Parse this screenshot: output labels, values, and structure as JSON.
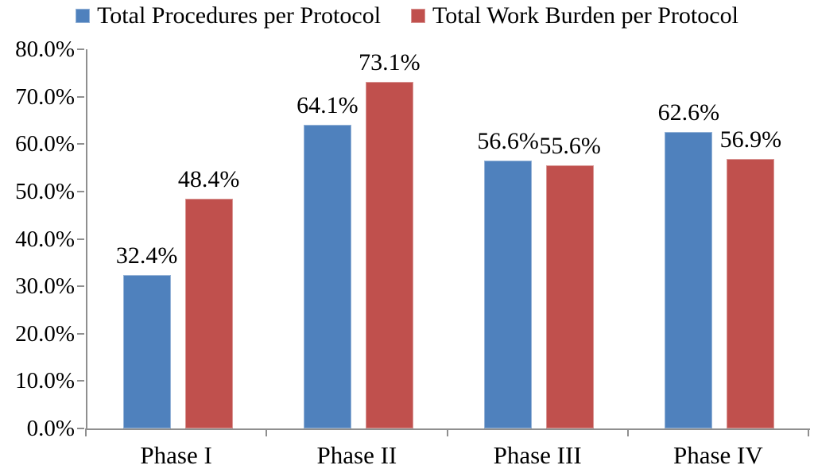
{
  "chart_data": {
    "type": "bar",
    "title": "",
    "xlabel": "",
    "ylabel": "",
    "categories": [
      "Phase I",
      "Phase II",
      "Phase III",
      "Phase IV"
    ],
    "series": [
      {
        "name": "Total Procedures per Protocol",
        "color": "#4F81BD",
        "border_color": "#95B3D7",
        "values": [
          32.4,
          64.1,
          56.6,
          62.6
        ],
        "data_labels": [
          "32.4%",
          "64.1%",
          "56.6%",
          "62.6%"
        ]
      },
      {
        "name": "Total Work Burden per Protocol",
        "color": "#C0504D",
        "border_color": "#D99694",
        "values": [
          48.4,
          73.1,
          55.6,
          56.9
        ],
        "data_labels": [
          "48.4%",
          "73.1%",
          "55.6%",
          "56.9%"
        ]
      }
    ],
    "ylim": [
      0,
      80
    ],
    "ytick_values": [
      0,
      10,
      20,
      30,
      40,
      50,
      60,
      70,
      80
    ],
    "ytick_labels": [
      "0.0%",
      "10.0%",
      "20.0%",
      "30.0%",
      "40.0%",
      "50.0%",
      "60.0%",
      "70.0%",
      "80.0%"
    ],
    "grid": false,
    "legend_position": "top",
    "axis_color": "#8f8f8f",
    "text_color": "#000000",
    "background_color": "#ffffff"
  }
}
